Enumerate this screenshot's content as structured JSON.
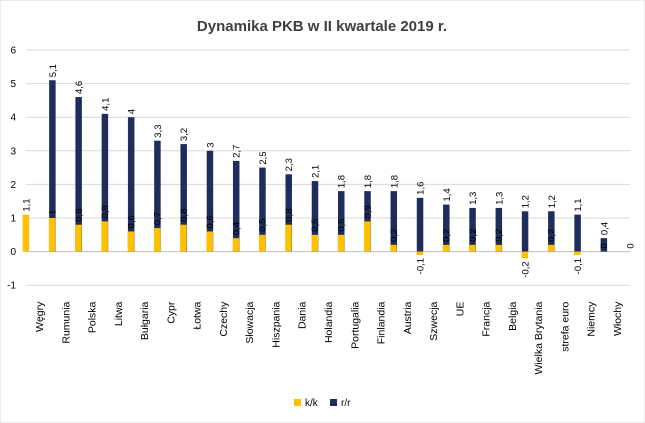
{
  "chart_data": {
    "type": "bar",
    "title": "Dynamika PKB w II kwartale 2019 r.",
    "xlabel": "",
    "ylabel": "",
    "ylim": [
      -1,
      6
    ],
    "yticks": [
      "-1",
      "0",
      "1",
      "2",
      "3",
      "4",
      "5",
      "6"
    ],
    "grid": true,
    "legend_position": "bottom",
    "categories": [
      "Węgry",
      "Rumunia",
      "Polska",
      "Litwa",
      "Bułgaria",
      "Cypr",
      "Łotwa",
      "Czechy",
      "Słowacja",
      "Hiszpania",
      "Dania",
      "Holandia",
      "Portugalia",
      "Finlandia",
      "Austria",
      "Szwecja",
      "UE",
      "Francja",
      "Belgia",
      "Wielka Brytania",
      "strefa euro",
      "Niemcy",
      "Włochy"
    ],
    "series": [
      {
        "name": "k/k",
        "color": "#ffc000",
        "values": [
          1.1,
          1,
          0.8,
          0.9,
          0.6,
          0.7,
          0.8,
          0.6,
          0.4,
          0.5,
          0.8,
          0.5,
          0.5,
          0.9,
          0.2,
          -0.1,
          0.2,
          0.2,
          0.2,
          -0.2,
          0.2,
          -0.1,
          0
        ],
        "labels": [
          "1,1",
          "1",
          "0,8",
          "0,9",
          "0,6",
          "0,7",
          "0,8",
          "0,6",
          "0,4",
          "0,5",
          "0,8",
          "0,5",
          "0,5",
          "0,9",
          "0,2",
          "-0,1",
          "0,2",
          "0,2",
          "0,2",
          "-0,2",
          "0,2",
          "-0,1",
          "0"
        ]
      },
      {
        "name": "r/r",
        "color": "#1f2d5c",
        "values": [
          5.1,
          4.6,
          4.1,
          4,
          3.3,
          3.2,
          3,
          2.7,
          2.5,
          2.3,
          2.1,
          1.8,
          1.8,
          1.8,
          1.6,
          1.4,
          1.3,
          1.3,
          1.2,
          1.2,
          1.1,
          0.4,
          0
        ],
        "labels": [
          "5,1",
          "4,6",
          "4,1",
          "4",
          "3,3",
          "3,2",
          "3",
          "2,7",
          "2,5",
          "2,3",
          "2,1",
          "1,8",
          "1,8",
          "1,8",
          "1,6",
          "1,4",
          "1,3",
          "1,3",
          "1,2",
          "1,2",
          "1,1",
          "0,4",
          "0"
        ]
      }
    ]
  }
}
